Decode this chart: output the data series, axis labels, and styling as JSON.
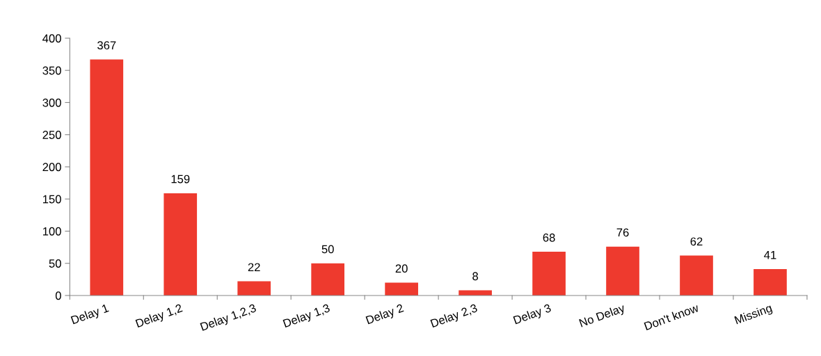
{
  "chart_data": {
    "type": "bar",
    "categories": [
      "Delay 1",
      "Delay 1,2",
      "Delay 1,2,3",
      "Delay 1,3",
      "Delay 2",
      "Delay 2,3",
      "Delay 3",
      "No Delay",
      "Don't know",
      "Missing"
    ],
    "values": [
      367,
      159,
      22,
      50,
      20,
      8,
      68,
      76,
      62,
      41
    ],
    "color": "#ee3a2e",
    "ylim": [
      0,
      400
    ],
    "yticks": [
      0,
      50,
      100,
      150,
      200,
      250,
      300,
      350,
      400
    ],
    "data_labels": true,
    "grid": false,
    "legend": false
  }
}
